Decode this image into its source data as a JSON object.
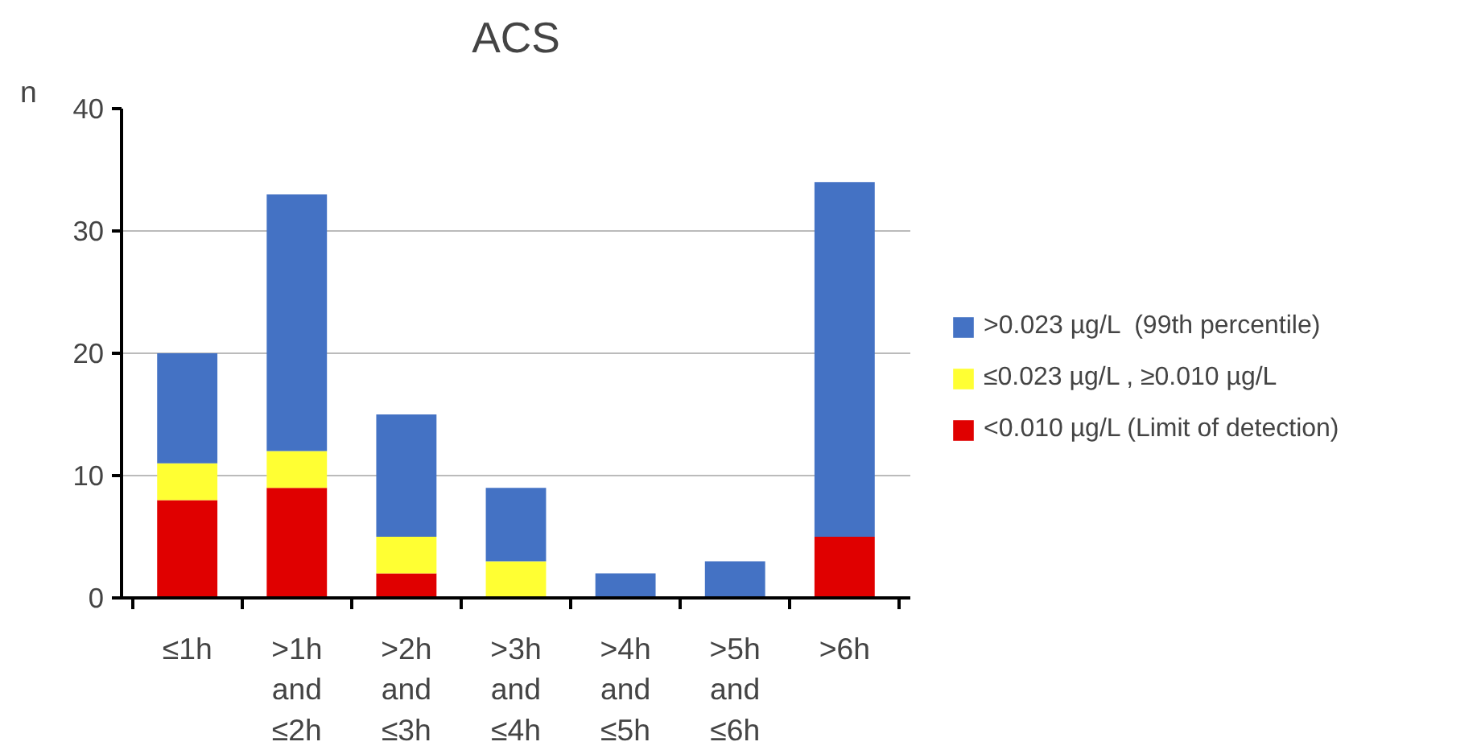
{
  "chart_data": {
    "type": "bar",
    "title": "ACS",
    "ylabel": "n",
    "categories": [
      "≤1h",
      ">1h\nand\n≤2h",
      ">2h\nand\n≤3h",
      ">3h\nand\n≤4h",
      ">4h\nand\n≤5h",
      ">5h\nand\n≤6h",
      ">6h"
    ],
    "stacked": true,
    "series": [
      {
        "name": "<0.010 µg/L (Limit of detection)",
        "color": "#e00000",
        "values": [
          8,
          9,
          2,
          0,
          0,
          0,
          5
        ]
      },
      {
        "name": "≤0.023 µg/L , ≥0.010 µg/L",
        "color": "#ffff33",
        "values": [
          3,
          3,
          3,
          3,
          0,
          0,
          0
        ]
      },
      {
        "name": ">0.023 µg/L  (99th percentile)",
        "color": "#4472c4",
        "values": [
          9,
          21,
          10,
          6,
          2,
          3,
          29
        ]
      }
    ],
    "ylim": [
      0,
      40
    ],
    "yticks": [
      0,
      10,
      20,
      30,
      40
    ],
    "grid": "y",
    "legend": "right"
  }
}
